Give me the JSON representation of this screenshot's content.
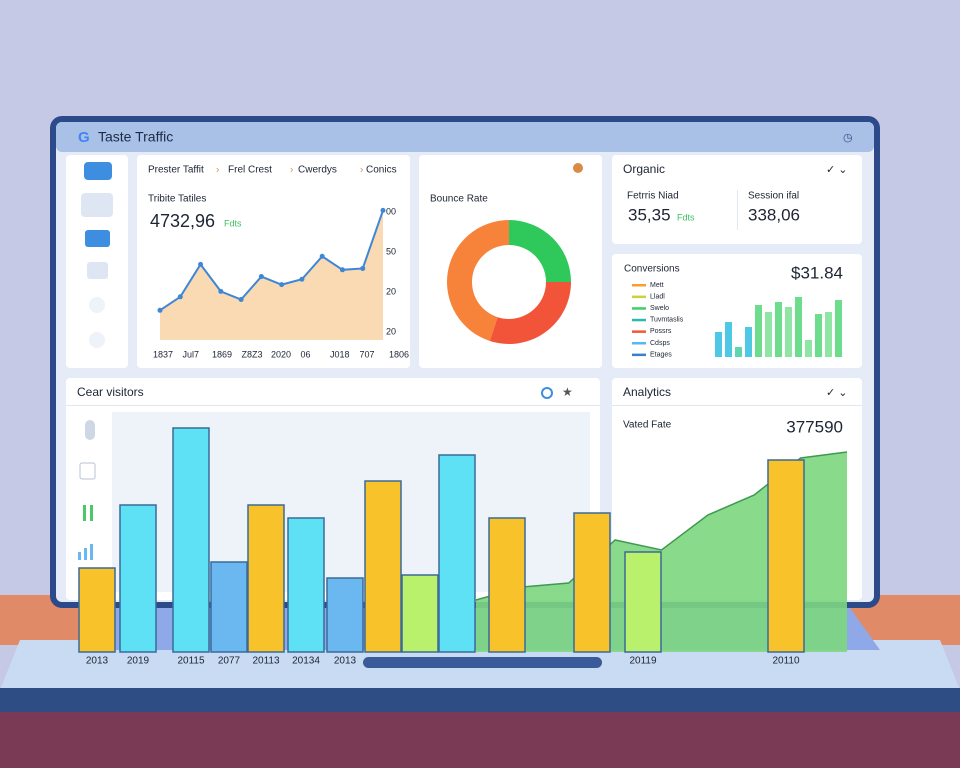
{
  "header": {
    "title": "Taste Traffic"
  },
  "tabs": [
    "Prester Taffit",
    "Frel Crest",
    "Cwerdys",
    "Conics"
  ],
  "traffic": {
    "label": "Tribite Tatiles",
    "value": "4732,96",
    "badge": "Fdts",
    "chart": {
      "type": "area",
      "x_labels": [
        "1837",
        "Jul7",
        "1869",
        "Z8Z3",
        "2020",
        "06",
        "J018",
        "707",
        "1806"
      ],
      "y_labels": [
        "00",
        "50",
        "20",
        "20"
      ],
      "values": [
        22,
        32,
        56,
        36,
        30,
        47,
        41,
        45,
        62,
        52,
        53,
        96
      ],
      "ylim": [
        0,
        100
      ],
      "color": "#3f86d6",
      "fill": "#f8d4a4"
    }
  },
  "bounce": {
    "label": "Bounce Rate",
    "chart": {
      "type": "pie",
      "values": [
        25,
        30,
        45
      ],
      "colors": [
        "#2ec95a",
        "#f2543a",
        "#f7823a"
      ]
    }
  },
  "organic": {
    "label": "Organic",
    "metrics": [
      {
        "label": "Fetrris Niad",
        "value": "35,35",
        "badge": "Fdts"
      },
      {
        "label": "Session ifal",
        "value": "338,06"
      }
    ]
  },
  "conversions": {
    "label": "Conversions",
    "value": "$31.84",
    "legend": [
      {
        "name": "Mett",
        "color": "#f7a030"
      },
      {
        "name": "Lladl",
        "color": "#c9d23a"
      },
      {
        "name": "Swelo",
        "color": "#3fcf6a"
      },
      {
        "name": "Tuvmtaslis",
        "color": "#2fb8a8"
      },
      {
        "name": "Possrs",
        "color": "#f0583a"
      },
      {
        "name": "Cdsps",
        "color": "#58b8f0"
      },
      {
        "name": "Etages",
        "color": "#3b7fc9"
      }
    ],
    "chart": {
      "type": "bar",
      "values": [
        25,
        35,
        10,
        30,
        52,
        45,
        55,
        50,
        60,
        17,
        43,
        45,
        57
      ],
      "ylim": [
        0,
        70
      ],
      "colors": [
        "#4fc8e6",
        "#4fc8e6",
        "#5fd6b0",
        "#4fc8e6",
        "#6ddc8c",
        "#8fe6a4",
        "#6ddc8c",
        "#8fe6a4",
        "#6ddc8c",
        "#8fe6a4",
        "#6ddc8c",
        "#8fe6a4",
        "#6ddc8c"
      ]
    }
  },
  "visitors": {
    "label": "Cear visitors",
    "chart": {
      "type": "bar",
      "categories": [
        "2013",
        "2019",
        "20115",
        "2077",
        "20113",
        "20134",
        "2013",
        null,
        null,
        null,
        null,
        null,
        "20119",
        "20110"
      ],
      "values": [
        84,
        147,
        224,
        90,
        147,
        134,
        74,
        171,
        77,
        197,
        134,
        139,
        100,
        192
      ],
      "ylim": [
        0,
        250
      ],
      "colors": [
        "#f7c22a",
        "#5ee1f5",
        "#5ee1f5",
        "#6bb8f0",
        "#f7c22a",
        "#5ee1f5",
        "#6bb8f0",
        "#f7c22a",
        "#b9f06c",
        "#5ee1f5",
        "#f7c22a",
        "#f7c22a",
        "#b9f06c",
        "#f7c22a"
      ],
      "area": {
        "values": [
          52,
          65,
          69,
          112,
          102,
          137,
          157,
          194,
          200
        ],
        "color": "#7dd67f"
      }
    }
  },
  "analytics": {
    "label": "Analytics",
    "metric_label": "Vated Fate",
    "value": "377590"
  }
}
